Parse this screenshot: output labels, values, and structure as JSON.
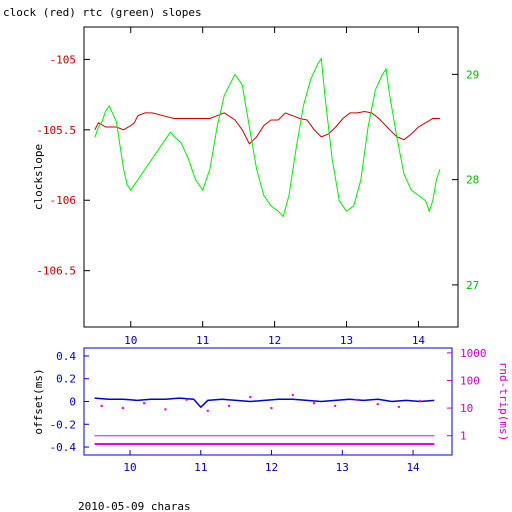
{
  "title": "clock (red) rtc (green) slopes",
  "footer": "2010-05-09 charas",
  "colors": {
    "axis": "#000000",
    "clock": "#cc0000",
    "rtc": "#00ee00",
    "offset": "#0000cc",
    "roundtrip": "#ee00ee",
    "left_tick_labels_top": "#cc0000",
    "right_tick_labels_top": "#00bb00",
    "bottom_axis_labels": "#0000cc",
    "right_tick_labels_bottom": "#cc00cc"
  },
  "chart_data": [
    {
      "type": "line",
      "title": "clock (red) rtc (green) slopes",
      "xlabel": "",
      "ylabel": "clockslope",
      "y2label": "",
      "xlim": [
        9.35,
        14.55
      ],
      "ylim": [
        -106.9,
        -104.77
      ],
      "y2lim": [
        26.6,
        29.45
      ],
      "x_ticks": [
        10,
        11,
        12,
        13,
        14
      ],
      "y_ticks": [
        "-105",
        "-105.5",
        "-106",
        "-106.5"
      ],
      "y_tick_values": [
        -105,
        -105.5,
        -106,
        -106.5
      ],
      "y2_ticks": [
        "29",
        "28",
        "27"
      ],
      "y2_tick_values": [
        29,
        28,
        27
      ],
      "grid": false,
      "series": [
        {
          "name": "clock",
          "axis": "left",
          "x": [
            9.5,
            9.55,
            9.65,
            9.8,
            9.9,
            10.0,
            10.05,
            10.1,
            10.2,
            10.3,
            10.45,
            10.6,
            10.75,
            10.9,
            11.0,
            11.1,
            11.2,
            11.3,
            11.45,
            11.55,
            11.65,
            11.75,
            11.85,
            11.95,
            12.05,
            12.15,
            12.25,
            12.35,
            12.45,
            12.55,
            12.65,
            12.75,
            12.85,
            12.95,
            13.05,
            13.15,
            13.25,
            13.35,
            13.45,
            13.6,
            13.7,
            13.8,
            13.9,
            14.0,
            14.1,
            14.2,
            14.3
          ],
          "y": [
            -105.5,
            -105.45,
            -105.48,
            -105.48,
            -105.5,
            -105.47,
            -105.45,
            -105.4,
            -105.38,
            -105.38,
            -105.4,
            -105.42,
            -105.42,
            -105.42,
            -105.42,
            -105.42,
            -105.4,
            -105.38,
            -105.43,
            -105.5,
            -105.6,
            -105.55,
            -105.47,
            -105.43,
            -105.43,
            -105.38,
            -105.4,
            -105.42,
            -105.43,
            -105.5,
            -105.55,
            -105.53,
            -105.48,
            -105.42,
            -105.38,
            -105.38,
            -105.37,
            -105.38,
            -105.42,
            -105.5,
            -105.55,
            -105.57,
            -105.53,
            -105.48,
            -105.45,
            -105.42,
            -105.42
          ]
        },
        {
          "name": "rtc",
          "axis": "right",
          "x": [
            9.5,
            9.55,
            9.6,
            9.65,
            9.7,
            9.8,
            9.9,
            9.95,
            10.0,
            10.05,
            10.15,
            10.3,
            10.45,
            10.55,
            10.62,
            10.7,
            10.8,
            10.9,
            11.0,
            11.1,
            11.2,
            11.3,
            11.45,
            11.55,
            11.65,
            11.75,
            11.85,
            11.95,
            12.05,
            12.12,
            12.2,
            12.3,
            12.4,
            12.5,
            12.6,
            12.65,
            12.7,
            12.8,
            12.9,
            13.0,
            13.1,
            13.2,
            13.3,
            13.4,
            13.5,
            13.55,
            13.6,
            13.7,
            13.8,
            13.9,
            14.0,
            14.1,
            14.15,
            14.2,
            14.25,
            14.3
          ],
          "y": [
            28.4,
            28.5,
            28.55,
            28.65,
            28.7,
            28.55,
            28.1,
            27.95,
            27.9,
            27.95,
            28.05,
            28.2,
            28.35,
            28.45,
            28.4,
            28.35,
            28.2,
            28.0,
            27.9,
            28.1,
            28.5,
            28.8,
            29.0,
            28.9,
            28.5,
            28.1,
            27.85,
            27.75,
            27.7,
            27.65,
            27.85,
            28.3,
            28.7,
            28.95,
            29.1,
            29.15,
            28.8,
            28.2,
            27.8,
            27.7,
            27.75,
            28.0,
            28.5,
            28.85,
            29.0,
            29.05,
            28.8,
            28.4,
            28.05,
            27.9,
            27.85,
            27.8,
            27.7,
            27.8,
            28.0,
            28.1
          ]
        }
      ],
      "annotations": []
    },
    {
      "type": "scatter",
      "xlabel": "",
      "ylabel": "offset(ms)",
      "y2label": "rnd-trip(ms)",
      "xlim": [
        9.35,
        14.55
      ],
      "ylim": [
        -0.47,
        0.47
      ],
      "y2lim": [
        0.2,
        1500
      ],
      "y2_scale": "log",
      "x_ticks": [
        10,
        11,
        12,
        13,
        14
      ],
      "y_ticks": [
        "0.4",
        "0.2",
        "0",
        "-0.2",
        "-0.4"
      ],
      "y_tick_values": [
        0.4,
        0.2,
        0,
        -0.2,
        -0.4
      ],
      "y2_ticks": [
        "1000",
        "100",
        "10",
        "1"
      ],
      "y2_tick_values": [
        1000,
        100,
        10,
        1
      ],
      "grid": false,
      "series": [
        {
          "name": "offset",
          "axis": "left",
          "x": [
            9.5,
            9.7,
            9.9,
            10.1,
            10.3,
            10.5,
            10.7,
            10.9,
            11.0,
            11.1,
            11.3,
            11.5,
            11.7,
            11.9,
            12.1,
            12.3,
            12.5,
            12.7,
            12.9,
            13.1,
            13.3,
            13.5,
            13.7,
            13.9,
            14.1,
            14.3
          ],
          "y": [
            0.03,
            0.02,
            0.02,
            0.01,
            0.02,
            0.02,
            0.03,
            0.02,
            -0.05,
            0.01,
            0.02,
            0.01,
            0.0,
            0.01,
            0.02,
            0.02,
            0.01,
            0.0,
            0.01,
            0.02,
            0.01,
            0.02,
            0.0,
            0.01,
            0.0,
            0.01
          ]
        },
        {
          "name": "roundtrip",
          "axis": "right",
          "x": [
            9.5,
            9.8,
            10.1,
            10.4,
            10.7,
            11.0,
            11.3,
            11.6,
            11.9,
            12.2,
            12.5,
            12.8,
            13.1,
            13.4,
            13.7,
            14.0,
            14.3
          ],
          "y": [
            0.5,
            0.5,
            0.5,
            0.5,
            0.5,
            0.5,
            0.5,
            0.5,
            0.5,
            0.5,
            0.5,
            0.5,
            0.5,
            0.5,
            0.5,
            0.5,
            0.5
          ]
        },
        {
          "name": "roundtrip-baseline",
          "axis": "right",
          "x": [
            9.5,
            9.8,
            10.1,
            10.4,
            10.7,
            11.0,
            11.3,
            11.6,
            11.9,
            12.2,
            12.5,
            12.8,
            13.1,
            13.4,
            13.7,
            14.0,
            14.3
          ],
          "y": [
            1,
            1,
            1,
            1,
            1,
            1,
            1,
            1,
            1,
            1,
            1,
            1,
            1,
            1,
            1,
            1,
            1
          ]
        },
        {
          "name": "roundtrip-scatter",
          "axis": "right",
          "x": [
            9.6,
            9.9,
            10.2,
            10.5,
            10.8,
            11.1,
            11.4,
            11.7,
            12.0,
            12.3,
            12.6,
            12.9,
            13.2,
            13.5,
            13.8,
            14.1
          ],
          "y": [
            12,
            10,
            15,
            9,
            20,
            8,
            12,
            25,
            10,
            30,
            15,
            12,
            20,
            14,
            11,
            18
          ]
        }
      ],
      "annotations": []
    }
  ]
}
